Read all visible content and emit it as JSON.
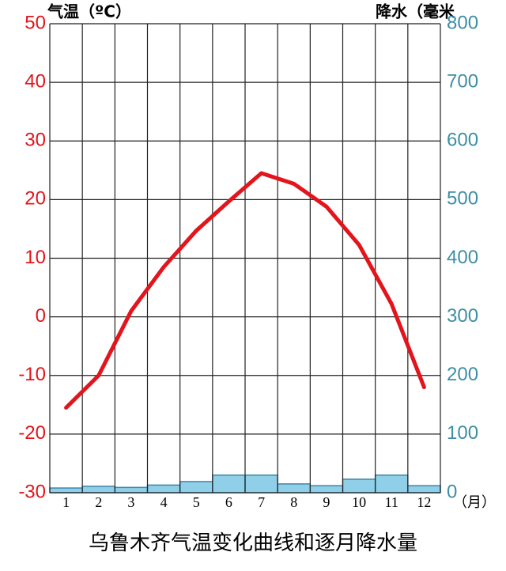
{
  "chart_data": {
    "type": "combo",
    "title": "乌鲁木齐气温变化曲线和逐月降水量",
    "y_label": "气温（ºC）",
    "y2_label": "降水（毫米",
    "x_label": "（月）",
    "categories": [
      "1",
      "2",
      "3",
      "4",
      "5",
      "6",
      "7",
      "8",
      "9",
      "10",
      "11",
      "12"
    ],
    "series": [
      {
        "name": "气温",
        "type": "line",
        "color": "#e3141b",
        "values": [
          -15.5,
          -10,
          1,
          8.5,
          14.7,
          19.7,
          24.5,
          22.7,
          18.8,
          12.3,
          2.2,
          -12
        ]
      },
      {
        "name": "降水",
        "type": "bar",
        "axis": "y2",
        "color": "#8fd0e8",
        "values": [
          8,
          11,
          9,
          13,
          19,
          30,
          30,
          15,
          12,
          23,
          30,
          12
        ]
      }
    ],
    "ylim": [
      -30,
      50
    ],
    "yticks": [
      -30,
      -20,
      -10,
      0,
      10,
      20,
      30,
      40,
      50
    ],
    "y2lim": [
      0,
      800
    ],
    "y2ticks": [
      0,
      100,
      200,
      300,
      400,
      500,
      600,
      700,
      800
    ],
    "grid": true,
    "y_color": "#e3141b",
    "y2_color": "#3d8ea6"
  }
}
